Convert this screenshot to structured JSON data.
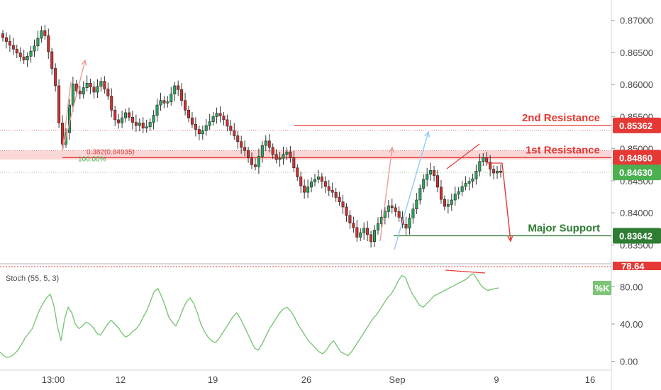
{
  "chart_data": [
    {
      "type": "candlestick",
      "panel": "price",
      "y_ticks": [
        "0.87000",
        "0.86500",
        "0.86000",
        "0.85500",
        "0.85000",
        "0.84500",
        "0.84000",
        "0.83500"
      ],
      "y_tick_values": [
        0.87,
        0.865,
        0.86,
        0.855,
        0.85,
        0.845,
        0.84,
        0.835
      ],
      "ylim": [
        0.8325,
        0.8725
      ],
      "x_ticks": [
        "13:00",
        "12",
        "19",
        "26",
        "Sep",
        "9",
        "16"
      ],
      "levels": [
        {
          "label": "2nd Resistance",
          "value": 0.85362,
          "tag": "0.85362",
          "color": "#e53935"
        },
        {
          "label": "1st Resistance",
          "value": 0.8486,
          "tag": "0.84860",
          "color": "#e53935"
        },
        {
          "label": "Major Support",
          "value": 0.83642,
          "tag": "0.83642",
          "color": "#2e7d32"
        }
      ],
      "current_price": {
        "value": 0.8463,
        "tag": "0.84630",
        "color": "#4caf50"
      },
      "fib": {
        "level_label": "0.382(0.84935)",
        "value": 0.84935,
        "base_label": "100.00%"
      },
      "series": [
        {
          "name": "close",
          "values": [
            0.8673,
            0.8667,
            0.8661,
            0.8655,
            0.8649,
            0.8643,
            0.8638,
            0.8644,
            0.8652,
            0.866,
            0.8672,
            0.8684,
            0.8676,
            0.8651,
            0.8625,
            0.8598,
            0.854,
            0.8507,
            0.8525,
            0.8568,
            0.8601,
            0.859,
            0.8585,
            0.8595,
            0.8602,
            0.8596,
            0.8588,
            0.8597,
            0.8605,
            0.8593,
            0.8582,
            0.856,
            0.8545,
            0.854,
            0.8548,
            0.8556,
            0.8549,
            0.8541,
            0.8536,
            0.854,
            0.8532,
            0.8534,
            0.8541,
            0.8552,
            0.8568,
            0.8575,
            0.8571,
            0.8573,
            0.8585,
            0.8598,
            0.8592,
            0.8575,
            0.856,
            0.8548,
            0.8538,
            0.853,
            0.8523,
            0.8528,
            0.8536,
            0.8542,
            0.855,
            0.8555,
            0.8551,
            0.8545,
            0.8535,
            0.8528,
            0.852,
            0.8511,
            0.8502,
            0.8497,
            0.8486,
            0.8475,
            0.8472,
            0.8488,
            0.8505,
            0.8512,
            0.8502,
            0.8491,
            0.8483,
            0.8485,
            0.8491,
            0.8495,
            0.8486,
            0.847,
            0.8456,
            0.8442,
            0.8432,
            0.844,
            0.8448,
            0.8452,
            0.8456,
            0.8449,
            0.8441,
            0.8435,
            0.8432,
            0.8424,
            0.8417,
            0.8409,
            0.8396,
            0.8384,
            0.8377,
            0.8362,
            0.8369,
            0.8376,
            0.8366,
            0.8355,
            0.8373,
            0.8383,
            0.8393,
            0.8402,
            0.8411,
            0.8408,
            0.8402,
            0.8393,
            0.8382,
            0.8376,
            0.8392,
            0.8406,
            0.842,
            0.8438,
            0.8452,
            0.846,
            0.8466,
            0.8458,
            0.844,
            0.8421,
            0.841,
            0.8413,
            0.842,
            0.8429,
            0.8433,
            0.8441,
            0.8446,
            0.8449,
            0.8453,
            0.8465,
            0.848,
            0.8486,
            0.8479,
            0.8468,
            0.8462,
            0.8465,
            0.8463
          ]
        },
        {
          "name": "reference",
          "values": [
            0.8463
          ]
        }
      ]
    },
    {
      "type": "line",
      "panel": "oscillator",
      "title": "Stoch (55, 5, 3)",
      "series_name": "%K",
      "current_tag": "78.64",
      "y_ticks": [
        "80.00",
        "40.00",
        "0.00"
      ],
      "y_tick_values": [
        80,
        40,
        0
      ],
      "ylim": [
        -8,
        100
      ],
      "values": [
        10,
        6,
        4,
        5,
        8,
        12,
        18,
        25,
        30,
        35,
        45,
        55,
        62,
        68,
        72,
        60,
        38,
        22,
        45,
        58,
        52,
        40,
        35,
        38,
        42,
        40,
        36,
        30,
        28,
        34,
        40,
        44,
        40,
        36,
        30,
        26,
        28,
        32,
        35,
        40,
        48,
        55,
        65,
        75,
        78,
        70,
        60,
        48,
        42,
        38,
        46,
        56,
        64,
        68,
        62,
        52,
        40,
        32,
        26,
        22,
        20,
        24,
        30,
        36,
        42,
        48,
        52,
        46,
        38,
        30,
        22,
        14,
        12,
        18,
        26,
        34,
        40,
        46,
        52,
        56,
        58,
        54,
        48,
        40,
        34,
        28,
        22,
        18,
        14,
        10,
        8,
        12,
        18,
        22,
        16,
        10,
        8,
        6,
        10,
        16,
        22,
        28,
        34,
        40,
        46,
        50,
        56,
        62,
        68,
        72,
        78,
        86,
        92,
        90,
        80,
        72,
        66,
        60,
        58,
        62,
        66,
        70,
        72,
        74,
        76,
        78,
        80,
        82,
        84,
        86,
        88,
        92,
        94,
        88,
        82,
        78,
        76,
        77,
        78,
        78.64
      ]
    }
  ]
}
